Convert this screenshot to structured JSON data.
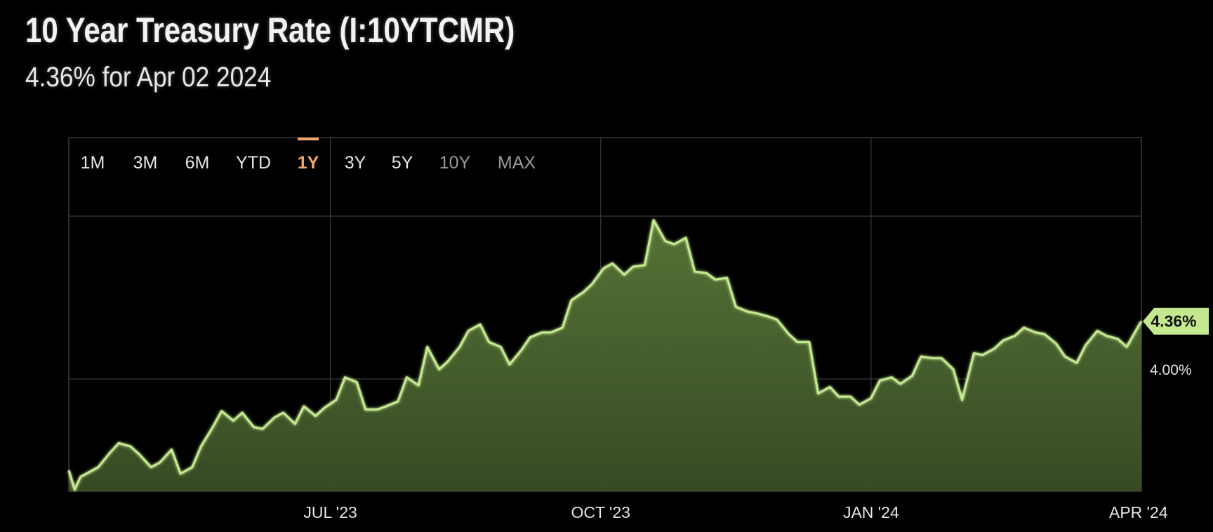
{
  "header": {
    "title": "10 Year Treasury Rate (I:10YTCMR)",
    "subtitle": "4.36% for Apr 02 2024"
  },
  "range_buttons": {
    "items": [
      "1M",
      "3M",
      "6M",
      "YTD",
      "1Y",
      "3Y",
      "5Y",
      "10Y",
      "MAX"
    ],
    "active": "1Y"
  },
  "colors": {
    "background": "#000000",
    "line": "#c4e890",
    "fill": "#4b6330",
    "grid": "#3a3a3a",
    "active_range": "#f3a56a",
    "label_box": "#c4e890"
  },
  "chart_data": {
    "type": "area",
    "title": "10 Year Treasury Rate (I:10YTCMR)",
    "xlabel": "",
    "ylabel": "",
    "grid": true,
    "x_ticks": [
      "JUL '23",
      "OCT '23",
      "JAN '24",
      "APR '24"
    ],
    "x_tick_dates": [
      "2023-07-01",
      "2023-10-01",
      "2024-01-01",
      "2024-04-01"
    ],
    "y_ticks": [
      {
        "value": 4.0,
        "label": "4.00%"
      }
    ],
    "last_value_label": "4.36%",
    "ylim": [
      3.3,
      5.05
    ],
    "series": [
      {
        "values": [
          [
            "2023-04-03",
            3.43
          ],
          [
            "2023-04-05",
            3.31
          ],
          [
            "2023-04-07",
            3.39
          ],
          [
            "2023-04-11",
            3.43
          ],
          [
            "2023-04-13",
            3.45
          ],
          [
            "2023-04-17",
            3.54
          ],
          [
            "2023-04-20",
            3.6
          ],
          [
            "2023-04-24",
            3.58
          ],
          [
            "2023-04-27",
            3.53
          ],
          [
            "2023-05-01",
            3.45
          ],
          [
            "2023-05-04",
            3.48
          ],
          [
            "2023-05-08",
            3.56
          ],
          [
            "2023-05-11",
            3.41
          ],
          [
            "2023-05-15",
            3.45
          ],
          [
            "2023-05-18",
            3.58
          ],
          [
            "2023-05-22",
            3.7
          ],
          [
            "2023-05-25",
            3.8
          ],
          [
            "2023-05-29",
            3.74
          ],
          [
            "2023-06-01",
            3.79
          ],
          [
            "2023-06-05",
            3.7
          ],
          [
            "2023-06-08",
            3.69
          ],
          [
            "2023-06-12",
            3.76
          ],
          [
            "2023-06-15",
            3.79
          ],
          [
            "2023-06-19",
            3.72
          ],
          [
            "2023-06-22",
            3.83
          ],
          [
            "2023-06-26",
            3.77
          ],
          [
            "2023-06-29",
            3.82
          ],
          [
            "2023-07-03",
            3.87
          ],
          [
            "2023-07-06",
            4.01
          ],
          [
            "2023-07-10",
            3.98
          ],
          [
            "2023-07-13",
            3.81
          ],
          [
            "2023-07-17",
            3.81
          ],
          [
            "2023-07-20",
            3.83
          ],
          [
            "2023-07-24",
            3.86
          ],
          [
            "2023-07-27",
            4.01
          ],
          [
            "2023-07-31",
            3.96
          ],
          [
            "2023-08-03",
            4.2
          ],
          [
            "2023-08-07",
            4.06
          ],
          [
            "2023-08-10",
            4.11
          ],
          [
            "2023-08-14",
            4.2
          ],
          [
            "2023-08-17",
            4.3
          ],
          [
            "2023-08-21",
            4.34
          ],
          [
            "2023-08-24",
            4.23
          ],
          [
            "2023-08-28",
            4.2
          ],
          [
            "2023-08-31",
            4.09
          ],
          [
            "2023-09-04",
            4.18
          ],
          [
            "2023-09-07",
            4.26
          ],
          [
            "2023-09-11",
            4.29
          ],
          [
            "2023-09-14",
            4.29
          ],
          [
            "2023-09-18",
            4.32
          ],
          [
            "2023-09-21",
            4.49
          ],
          [
            "2023-09-25",
            4.54
          ],
          [
            "2023-09-28",
            4.59
          ],
          [
            "2023-10-02",
            4.69
          ],
          [
            "2023-10-05",
            4.72
          ],
          [
            "2023-10-09",
            4.65
          ],
          [
            "2023-10-12",
            4.7
          ],
          [
            "2023-10-16",
            4.71
          ],
          [
            "2023-10-19",
            4.99
          ],
          [
            "2023-10-23",
            4.86
          ],
          [
            "2023-10-26",
            4.84
          ],
          [
            "2023-10-30",
            4.88
          ],
          [
            "2023-11-02",
            4.67
          ],
          [
            "2023-11-06",
            4.66
          ],
          [
            "2023-11-09",
            4.62
          ],
          [
            "2023-11-13",
            4.63
          ],
          [
            "2023-11-16",
            4.45
          ],
          [
            "2023-11-20",
            4.42
          ],
          [
            "2023-11-23",
            4.41
          ],
          [
            "2023-11-27",
            4.39
          ],
          [
            "2023-11-30",
            4.37
          ],
          [
            "2023-12-04",
            4.28
          ],
          [
            "2023-12-07",
            4.23
          ],
          [
            "2023-12-11",
            4.23
          ],
          [
            "2023-12-14",
            3.91
          ],
          [
            "2023-12-18",
            3.95
          ],
          [
            "2023-12-21",
            3.89
          ],
          [
            "2023-12-25",
            3.89
          ],
          [
            "2023-12-28",
            3.84
          ],
          [
            "2024-01-01",
            3.88
          ],
          [
            "2024-01-04",
            3.99
          ],
          [
            "2024-01-08",
            4.01
          ],
          [
            "2024-01-11",
            3.97
          ],
          [
            "2024-01-15",
            4.02
          ],
          [
            "2024-01-18",
            4.14
          ],
          [
            "2024-01-22",
            4.13
          ],
          [
            "2024-01-25",
            4.13
          ],
          [
            "2024-01-29",
            4.06
          ],
          [
            "2024-02-01",
            3.87
          ],
          [
            "2024-02-05",
            4.16
          ],
          [
            "2024-02-08",
            4.15
          ],
          [
            "2024-02-12",
            4.19
          ],
          [
            "2024-02-15",
            4.24
          ],
          [
            "2024-02-19",
            4.27
          ],
          [
            "2024-02-22",
            4.32
          ],
          [
            "2024-02-26",
            4.29
          ],
          [
            "2024-02-29",
            4.28
          ],
          [
            "2024-03-04",
            4.22
          ],
          [
            "2024-03-07",
            4.14
          ],
          [
            "2024-03-11",
            4.1
          ],
          [
            "2024-03-14",
            4.21
          ],
          [
            "2024-03-18",
            4.3
          ],
          [
            "2024-03-21",
            4.27
          ],
          [
            "2024-03-25",
            4.25
          ],
          [
            "2024-03-28",
            4.2
          ],
          [
            "2024-04-01",
            4.33
          ],
          [
            "2024-04-02",
            4.36
          ]
        ]
      }
    ]
  }
}
